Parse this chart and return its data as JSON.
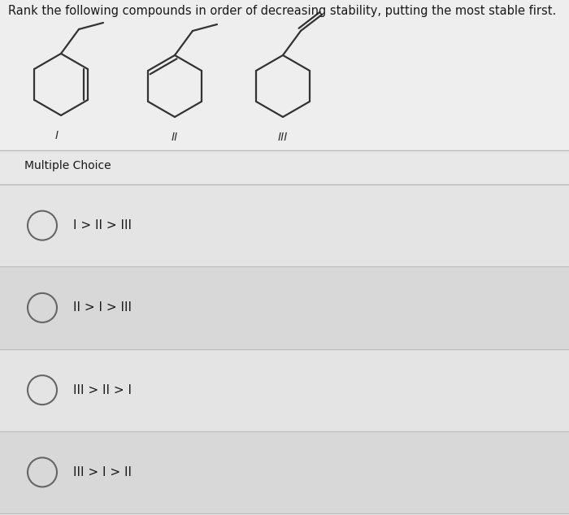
{
  "title": "Rank the following compounds in order of decreasing stability, putting the most stable first.",
  "title_fontsize": 10.5,
  "bg_color": "#e8e8e8",
  "top_bg_color": "#efefef",
  "mc_label": "Multiple Choice",
  "mc_fontsize": 10,
  "choices": [
    "I > II > III",
    "II > I > III",
    "III > II > I",
    "III > I > II"
  ],
  "choice_fontsize": 11,
  "compound_labels": [
    "I",
    "II",
    "III"
  ],
  "fig_width": 7.0,
  "fig_height": 6.34
}
